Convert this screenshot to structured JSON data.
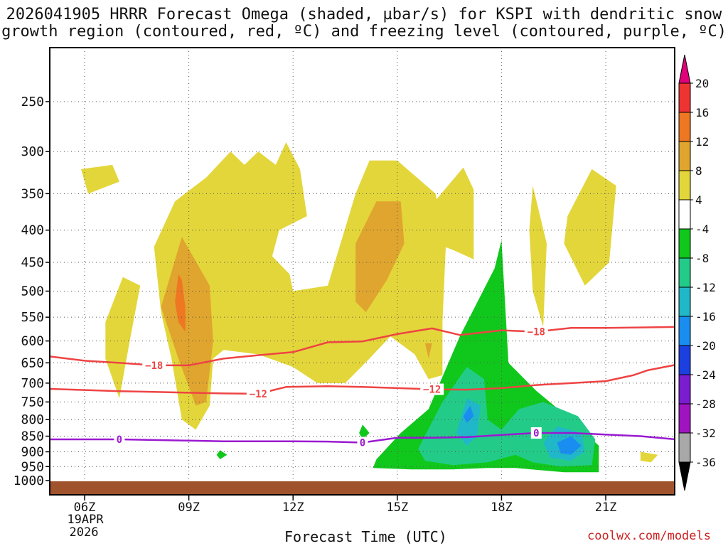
{
  "title": {
    "line1": "2026041905 HRRR Forecast Omega (shaded, µbar/s) for KSPI with dendritic snow",
    "line2": "growth region (contoured, red, ºC) and freezing level (contoured, purple, ºC)"
  },
  "xaxis_label": "Forecast Time (UTC)",
  "credit": "coolwx.com/models",
  "date_label": {
    "line1": "19APR",
    "line2": "2026"
  },
  "chart_data": {
    "type": "heatmap",
    "title": "2026041905 HRRR Forecast Omega (shaded, µbar/s) for KSPI with dendritic snow growth region (contoured, red, ºC) and freezing level (contoured, purple, ºC)",
    "xlabel": "Forecast Time (UTC)",
    "ylabel": "",
    "x_tick_labels": [
      "06Z",
      "09Z",
      "12Z",
      "15Z",
      "18Z",
      "21Z"
    ],
    "x_tick_hours": [
      6,
      9,
      12,
      15,
      18,
      21
    ],
    "xlim_hours": [
      5,
      23
    ],
    "y_tick_labels": [
      "250",
      "300",
      "350",
      "400",
      "450",
      "500",
      "550",
      "600",
      "650",
      "700",
      "750",
      "800",
      "850",
      "900",
      "950",
      "1000"
    ],
    "ylim_hpa": [
      1010,
      200
    ],
    "y_scale": "log-pressure",
    "grid": true,
    "colorbar": {
      "labels": [
        "20",
        "16",
        "12",
        "8",
        "4",
        "-4",
        "-8",
        "-12",
        "-16",
        "-20",
        "-24",
        "-28",
        "-32",
        "-36"
      ],
      "bins": [
        {
          "range": [
            16,
            20
          ],
          "color": "#ee3333"
        },
        {
          "range": [
            12,
            16
          ],
          "color": "#ee7722"
        },
        {
          "range": [
            8,
            12
          ],
          "color": "#e0a52e"
        },
        {
          "range": [
            4,
            8
          ],
          "color": "#e3d63a"
        },
        {
          "range": [
            -4,
            4
          ],
          "color": "#ffffff"
        },
        {
          "range": [
            -8,
            -4
          ],
          "color": "#10c81c"
        },
        {
          "range": [
            -12,
            -8
          ],
          "color": "#22cc88"
        },
        {
          "range": [
            -16,
            -12
          ],
          "color": "#20b8c8"
        },
        {
          "range": [
            -20,
            -16
          ],
          "color": "#1a8ef0"
        },
        {
          "range": [
            -24,
            -20
          ],
          "color": "#1c3fe0"
        },
        {
          "range": [
            -28,
            -24
          ],
          "color": "#7a1cd0"
        },
        {
          "range": [
            -32,
            -28
          ],
          "color": "#a014c0"
        },
        {
          "range": [
            -36,
            -32
          ],
          "color": "#a8a8a8"
        }
      ],
      "over_color": "#e0007a",
      "under_color": "#000000"
    },
    "ground_color": "#a0522d",
    "ground_below_hpa": 1000,
    "shaded_regions": [
      {
        "omega_min": 4,
        "color": "#e3d63a",
        "points": [
          [
            5.9,
            320
          ],
          [
            6.8,
            315
          ],
          [
            7.0,
            335
          ],
          [
            6.1,
            350
          ]
        ]
      },
      {
        "omega_min": 4,
        "color": "#e3d63a",
        "points": [
          [
            6.6,
            560
          ],
          [
            7.1,
            475
          ],
          [
            7.6,
            490
          ],
          [
            7.3,
            600
          ],
          [
            7.0,
            740
          ],
          [
            6.6,
            640
          ]
        ]
      },
      {
        "omega_min": 4,
        "color": "#e3d63a",
        "points": [
          [
            8.0,
            425
          ],
          [
            8.6,
            360
          ],
          [
            9.5,
            330
          ],
          [
            10.2,
            300
          ],
          [
            10.6,
            315
          ],
          [
            11.0,
            300
          ],
          [
            11.5,
            315
          ],
          [
            11.8,
            290
          ],
          [
            12.2,
            320
          ],
          [
            12.4,
            380
          ],
          [
            11.6,
            400
          ],
          [
            11.4,
            440
          ],
          [
            11.9,
            470
          ],
          [
            12.0,
            500
          ],
          [
            13.0,
            490
          ],
          [
            13.8,
            350
          ],
          [
            14.2,
            310
          ],
          [
            15.0,
            310
          ],
          [
            16.1,
            350
          ],
          [
            16.4,
            420
          ],
          [
            16.3,
            560
          ],
          [
            16.3,
            680
          ],
          [
            15.9,
            690
          ],
          [
            15.5,
            630
          ],
          [
            14.8,
            590
          ],
          [
            14.2,
            640
          ],
          [
            13.5,
            700
          ],
          [
            12.7,
            700
          ],
          [
            12.0,
            660
          ],
          [
            11.0,
            630
          ],
          [
            10.0,
            620
          ],
          [
            9.7,
            640
          ],
          [
            9.6,
            760
          ],
          [
            9.2,
            830
          ],
          [
            8.8,
            800
          ],
          [
            8.5,
            640
          ],
          [
            8.2,
            540
          ]
        ]
      },
      {
        "omega_min": 4,
        "color": "#e3d63a",
        "points": [
          [
            15.9,
            370
          ],
          [
            16.9,
            318
          ],
          [
            17.2,
            345
          ],
          [
            17.2,
            445
          ],
          [
            16.6,
            430
          ],
          [
            16.1,
            420
          ]
        ]
      },
      {
        "omega_min": 4,
        "color": "#e3d63a",
        "points": [
          [
            18.9,
            340
          ],
          [
            19.3,
            420
          ],
          [
            19.2,
            570
          ],
          [
            18.9,
            500
          ],
          [
            18.8,
            400
          ]
        ]
      },
      {
        "omega_min": 4,
        "color": "#e3d63a",
        "points": [
          [
            19.9,
            380
          ],
          [
            20.6,
            320
          ],
          [
            21.3,
            340
          ],
          [
            21.1,
            450
          ],
          [
            20.4,
            490
          ],
          [
            19.8,
            420
          ]
        ]
      },
      {
        "omega_min": 4,
        "color": "#e3d63a",
        "points": [
          [
            22.0,
            900
          ],
          [
            22.5,
            910
          ],
          [
            22.3,
            935
          ],
          [
            22.0,
            930
          ]
        ]
      },
      {
        "omega_min": 8,
        "color": "#e0a52e",
        "points": [
          [
            8.2,
            530
          ],
          [
            8.8,
            410
          ],
          [
            9.6,
            490
          ],
          [
            9.7,
            600
          ],
          [
            9.5,
            750
          ],
          [
            9.2,
            760
          ],
          [
            8.7,
            640
          ]
        ]
      },
      {
        "omega_min": 8,
        "color": "#e0a52e",
        "points": [
          [
            13.8,
            420
          ],
          [
            14.4,
            360
          ],
          [
            15.1,
            360
          ],
          [
            15.2,
            420
          ],
          [
            14.7,
            480
          ],
          [
            14.1,
            540
          ],
          [
            13.8,
            520
          ]
        ]
      },
      {
        "omega_min": 8,
        "color": "#e0a52e",
        "points": [
          [
            15.8,
            605
          ],
          [
            15.9,
            640
          ],
          [
            16.0,
            605
          ]
        ]
      },
      {
        "omega_min": 12,
        "color": "#ee7722",
        "points": [
          [
            8.7,
            470
          ],
          [
            8.8,
            480
          ],
          [
            8.9,
            530
          ],
          [
            8.9,
            580
          ],
          [
            8.7,
            560
          ],
          [
            8.6,
            520
          ]
        ]
      },
      {
        "omega_min": -4,
        "color": "#10c81c",
        "polarity": "negative",
        "points": [
          [
            14.4,
            925
          ],
          [
            15.1,
            840
          ],
          [
            15.9,
            770
          ],
          [
            16.8,
            590
          ],
          [
            17.8,
            460
          ],
          [
            18.0,
            415
          ],
          [
            18.2,
            650
          ],
          [
            19.0,
            720
          ],
          [
            20.0,
            800
          ],
          [
            20.8,
            880
          ],
          [
            20.8,
            970
          ],
          [
            19.8,
            970
          ],
          [
            18.4,
            955
          ],
          [
            17.6,
            955
          ],
          [
            16.6,
            960
          ],
          [
            15.4,
            960
          ],
          [
            14.3,
            955
          ]
        ]
      },
      {
        "omega_min": -4,
        "color": "#10c81c",
        "polarity": "negative",
        "points": [
          [
            14.0,
            815
          ],
          [
            14.2,
            840
          ],
          [
            14.0,
            860
          ],
          [
            13.9,
            840
          ]
        ]
      },
      {
        "omega_min": -4,
        "color": "#10c81c",
        "polarity": "negative",
        "points": [
          [
            9.9,
            895
          ],
          [
            10.1,
            910
          ],
          [
            9.9,
            925
          ],
          [
            9.8,
            910
          ]
        ]
      },
      {
        "omega_min": -8,
        "color": "#22cc88",
        "polarity": "negative",
        "points": [
          [
            15.6,
            890
          ],
          [
            16.3,
            750
          ],
          [
            17.0,
            660
          ],
          [
            17.5,
            690
          ],
          [
            17.6,
            800
          ],
          [
            18.0,
            830
          ],
          [
            18.5,
            770
          ],
          [
            19.2,
            750
          ],
          [
            20.2,
            790
          ],
          [
            20.7,
            860
          ],
          [
            20.6,
            945
          ],
          [
            19.7,
            950
          ],
          [
            18.9,
            935
          ],
          [
            18.4,
            910
          ],
          [
            17.6,
            935
          ],
          [
            16.6,
            945
          ],
          [
            15.8,
            930
          ]
        ]
      },
      {
        "omega_min": -12,
        "color": "#20b8c8",
        "polarity": "negative",
        "points": [
          [
            16.7,
            840
          ],
          [
            17.0,
            740
          ],
          [
            17.4,
            760
          ],
          [
            17.3,
            850
          ],
          [
            17.0,
            880
          ]
        ]
      },
      {
        "omega_min": -12,
        "color": "#20b8c8",
        "polarity": "negative",
        "points": [
          [
            19.2,
            870
          ],
          [
            19.6,
            820
          ],
          [
            20.3,
            840
          ],
          [
            20.4,
            900
          ],
          [
            20.0,
            930
          ],
          [
            19.4,
            920
          ]
        ]
      },
      {
        "omega_min": -16,
        "color": "#1a8ef0",
        "polarity": "negative",
        "points": [
          [
            16.9,
            790
          ],
          [
            17.1,
            760
          ],
          [
            17.2,
            790
          ],
          [
            17.0,
            810
          ]
        ]
      },
      {
        "omega_min": -16,
        "color": "#1a8ef0",
        "polarity": "negative",
        "points": [
          [
            19.6,
            870
          ],
          [
            20.0,
            850
          ],
          [
            20.3,
            880
          ],
          [
            20.0,
            910
          ],
          [
            19.7,
            905
          ]
        ]
      }
    ],
    "contours": [
      {
        "level_c": -18,
        "color": "#ee4444",
        "label": "−18",
        "label_positions_hours": [
          8.0,
          19.0
        ],
        "points": [
          [
            5.0,
            635
          ],
          [
            6.0,
            645
          ],
          [
            7.0,
            650
          ],
          [
            8.0,
            656
          ],
          [
            9.0,
            656
          ],
          [
            10.0,
            640
          ],
          [
            11.0,
            632
          ],
          [
            12.0,
            625
          ],
          [
            13.0,
            603
          ],
          [
            14.0,
            601
          ],
          [
            15.0,
            585
          ],
          [
            16.0,
            573
          ],
          [
            16.8,
            587
          ],
          [
            18.0,
            577
          ],
          [
            19.0,
            580
          ],
          [
            20.0,
            572
          ],
          [
            21.0,
            572
          ],
          [
            22.0,
            571
          ],
          [
            23.0,
            570
          ]
        ]
      },
      {
        "level_c": -12,
        "color": "#ee4444",
        "label": "−12",
        "label_positions_hours": [
          11.0,
          16.0
        ],
        "points": [
          [
            5.0,
            715
          ],
          [
            6.0,
            718
          ],
          [
            7.0,
            721
          ],
          [
            8.0,
            723
          ],
          [
            9.0,
            725
          ],
          [
            10.0,
            727
          ],
          [
            11.0,
            728
          ],
          [
            11.8,
            710
          ],
          [
            13.0,
            708
          ],
          [
            14.0,
            710
          ],
          [
            15.0,
            713
          ],
          [
            16.0,
            716
          ],
          [
            17.0,
            717
          ],
          [
            18.0,
            713
          ],
          [
            19.0,
            705
          ],
          [
            20.0,
            700
          ],
          [
            21.0,
            695
          ],
          [
            21.8,
            680
          ],
          [
            22.2,
            668
          ],
          [
            23.0,
            655
          ]
        ]
      },
      {
        "level_c": 0,
        "color": "#9a1ad0",
        "label": "0",
        "label_positions_hours": [
          7.0,
          14.0,
          19.0
        ],
        "points": [
          [
            5.0,
            860
          ],
          [
            6.0,
            860
          ],
          [
            7.0,
            860
          ],
          [
            8.0,
            862
          ],
          [
            9.0,
            864
          ],
          [
            10.0,
            866
          ],
          [
            11.0,
            866
          ],
          [
            12.0,
            866
          ],
          [
            13.0,
            867
          ],
          [
            14.0,
            870
          ],
          [
            15.0,
            855
          ],
          [
            16.0,
            855
          ],
          [
            17.0,
            853
          ],
          [
            18.0,
            846
          ],
          [
            19.0,
            840
          ],
          [
            20.0,
            840
          ],
          [
            21.0,
            845
          ],
          [
            22.0,
            850
          ],
          [
            23.0,
            860
          ]
        ]
      }
    ]
  }
}
